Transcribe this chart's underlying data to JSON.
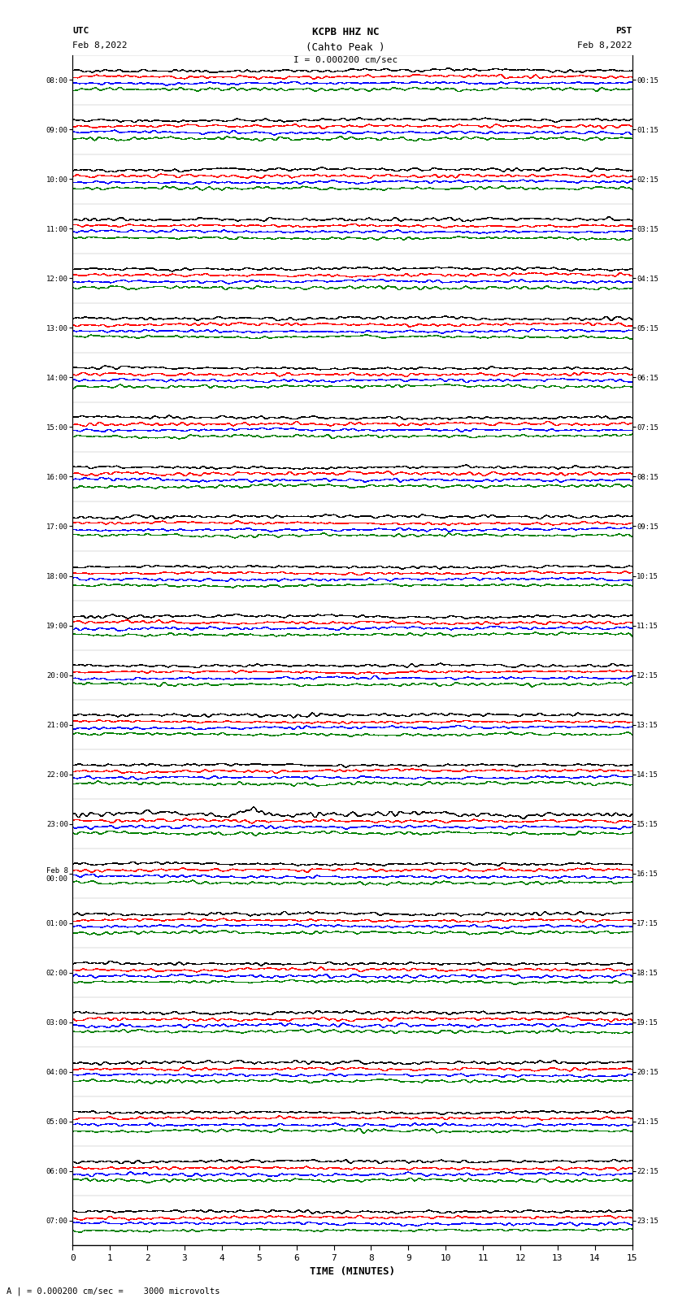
{
  "title_line1": "KCPB HHZ NC",
  "title_line2": "(Cahto Peak )",
  "scale_text": "I = 0.000200 cm/sec",
  "bottom_scale_text": "A | = 0.000200 cm/sec =    3000 microvolts",
  "utc_label": "UTC",
  "utc_date": "Feb 8,2022",
  "pst_label": "PST",
  "pst_date": "Feb 8,2022",
  "xlabel": "TIME (MINUTES)",
  "left_times_utc": [
    "08:00",
    "09:00",
    "10:00",
    "11:00",
    "12:00",
    "13:00",
    "14:00",
    "15:00",
    "16:00",
    "17:00",
    "18:00",
    "19:00",
    "20:00",
    "21:00",
    "22:00",
    "23:00",
    "Feb 8\n00:00",
    "01:00",
    "02:00",
    "03:00",
    "04:00",
    "05:00",
    "06:00",
    "07:00"
  ],
  "right_times_pst": [
    "00:15",
    "01:15",
    "02:15",
    "03:15",
    "04:15",
    "05:15",
    "06:15",
    "07:15",
    "08:15",
    "09:15",
    "10:15",
    "11:15",
    "12:15",
    "13:15",
    "14:15",
    "15:15",
    "16:15",
    "17:15",
    "18:15",
    "19:15",
    "20:15",
    "21:15",
    "22:15",
    "23:15"
  ],
  "n_rows": 24,
  "colors_cycle": [
    "black",
    "red",
    "blue",
    "green"
  ],
  "bg_color": "white",
  "line_width": 0.3,
  "fig_width": 8.5,
  "fig_height": 16.13,
  "dpi": 100,
  "xmin": 0,
  "xmax": 15,
  "xticks": [
    0,
    1,
    2,
    3,
    4,
    5,
    6,
    7,
    8,
    9,
    10,
    11,
    12,
    13,
    14,
    15
  ],
  "special_row_index": 15,
  "special_color": "red"
}
